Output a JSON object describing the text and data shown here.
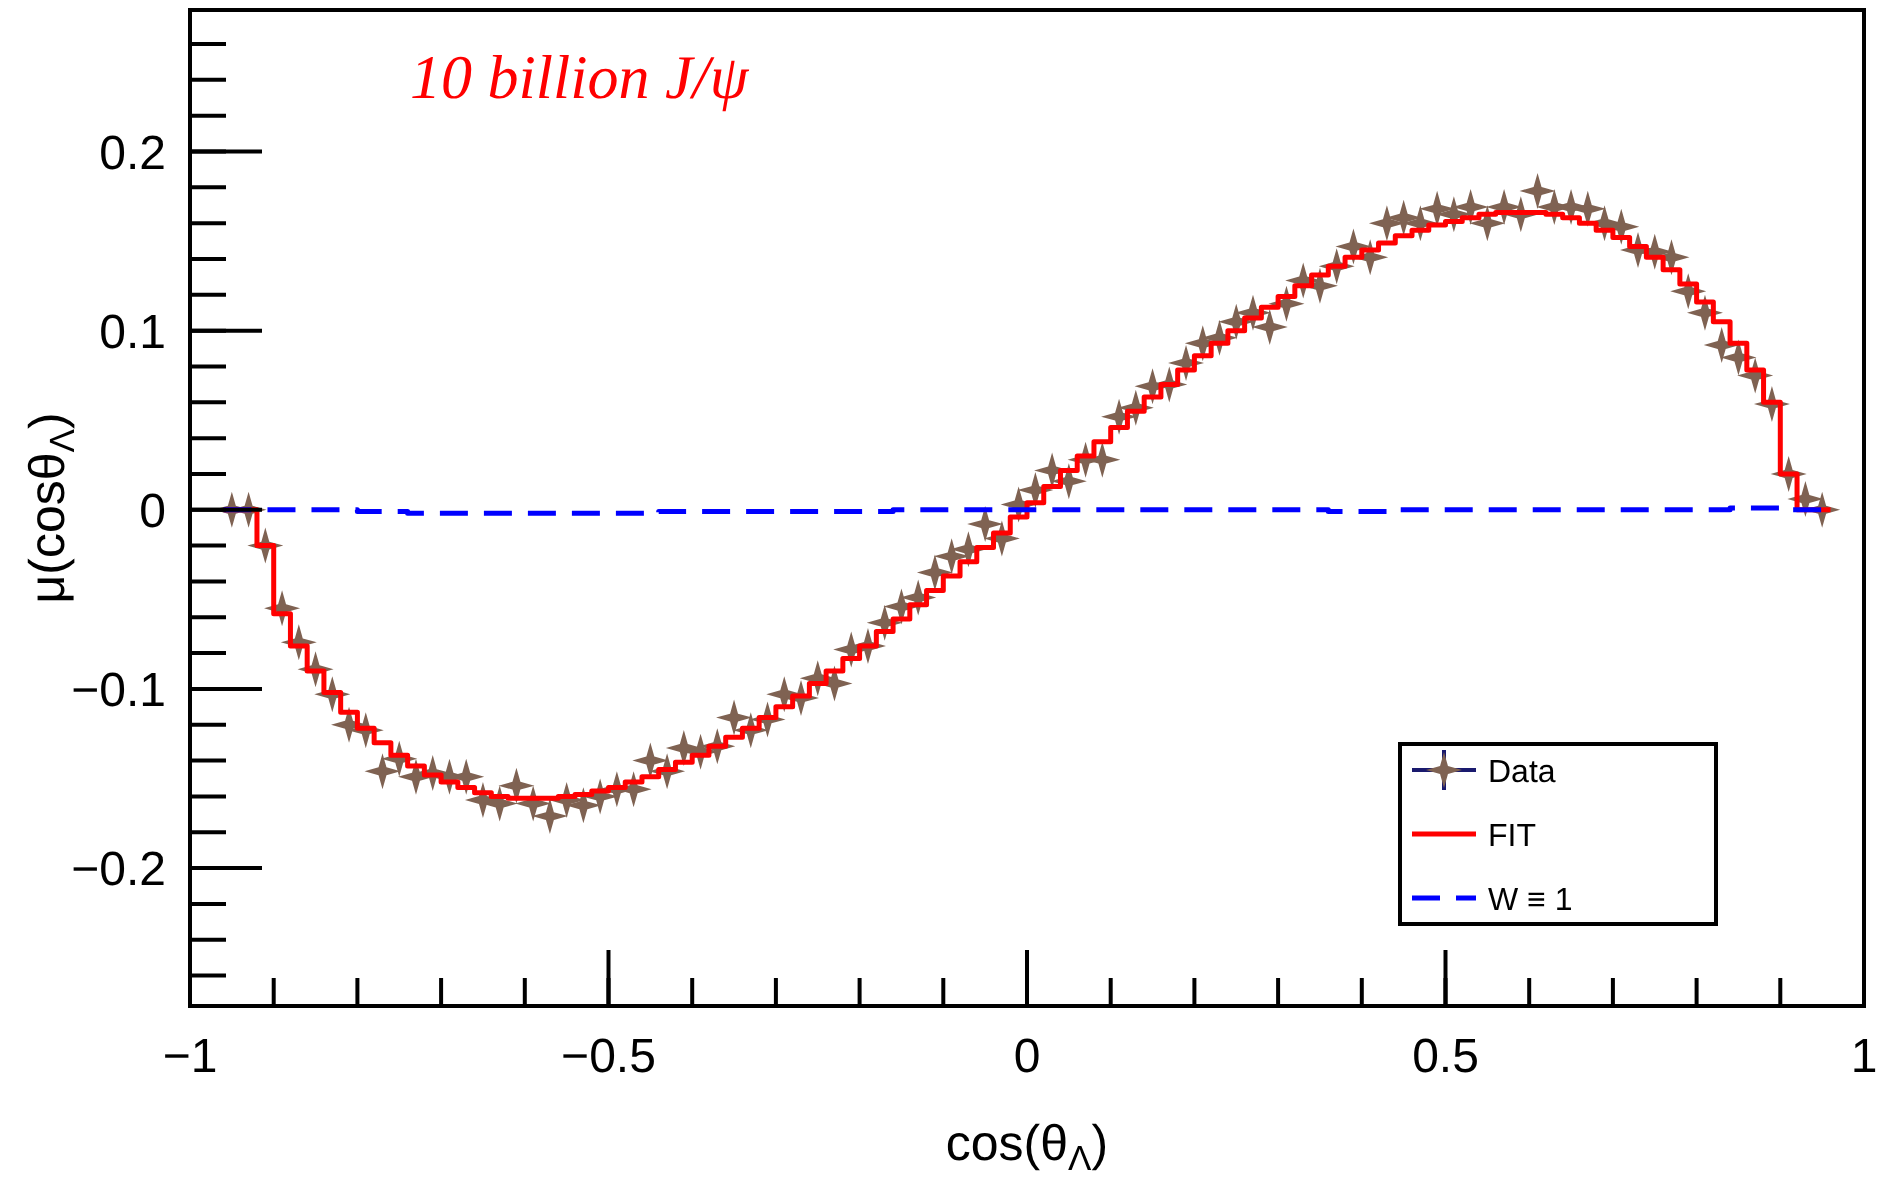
{
  "chart_data": {
    "type": "step",
    "title": "10 billion J/ψ",
    "xlabel": "cos(θ$_{Λ}$)",
    "ylabel": "μ(cosθ$_{Λ}$)",
    "x": [
      -0.95,
      -0.93,
      -0.91,
      -0.89,
      -0.87,
      -0.85,
      -0.83,
      -0.81,
      -0.79,
      -0.77,
      -0.75,
      -0.73,
      -0.71,
      -0.69,
      -0.67,
      -0.65,
      -0.63,
      -0.61,
      -0.59,
      -0.57,
      -0.55,
      -0.53,
      -0.51,
      -0.49,
      -0.47,
      -0.45,
      -0.43,
      -0.41,
      -0.39,
      -0.37,
      -0.35,
      -0.33,
      -0.31,
      -0.29,
      -0.27,
      -0.25,
      -0.23,
      -0.21,
      -0.19,
      -0.17,
      -0.15,
      -0.13,
      -0.11,
      -0.09,
      -0.07,
      -0.05,
      -0.03,
      -0.01,
      0.01,
      0.03,
      0.05,
      0.07,
      0.09,
      0.11,
      0.13,
      0.15,
      0.17,
      0.19,
      0.21,
      0.23,
      0.25,
      0.27,
      0.29,
      0.31,
      0.33,
      0.35,
      0.37,
      0.39,
      0.41,
      0.43,
      0.45,
      0.47,
      0.49,
      0.51,
      0.53,
      0.55,
      0.57,
      0.59,
      0.61,
      0.63,
      0.65,
      0.67,
      0.69,
      0.71,
      0.73,
      0.75,
      0.77,
      0.79,
      0.81,
      0.83,
      0.85,
      0.87,
      0.89,
      0.91,
      0.93,
      0.95
    ],
    "series": [
      {
        "name": "Data",
        "type": "scatter",
        "color": "#7f6252",
        "marker": "star",
        "values": [
          0,
          0,
          -0.02,
          -0.055,
          -0.074,
          -0.089,
          -0.103,
          -0.12,
          -0.123,
          -0.146,
          -0.139,
          -0.149,
          -0.147,
          -0.149,
          -0.149,
          -0.162,
          -0.164,
          -0.154,
          -0.164,
          -0.171,
          -0.162,
          -0.165,
          -0.16,
          -0.156,
          -0.156,
          -0.14,
          -0.146,
          -0.133,
          -0.135,
          -0.132,
          -0.116,
          -0.123,
          -0.117,
          -0.103,
          -0.105,
          -0.094,
          -0.097,
          -0.078,
          -0.076,
          -0.063,
          -0.054,
          -0.049,
          -0.035,
          -0.026,
          -0.022,
          -0.008,
          -0.016,
          0.003,
          0.011,
          0.022,
          0.016,
          0.028,
          0.028,
          0.052,
          0.057,
          0.069,
          0.07,
          0.082,
          0.093,
          0.096,
          0.105,
          0.11,
          0.102,
          0.115,
          0.128,
          0.125,
          0.136,
          0.147,
          0.141,
          0.16,
          0.163,
          0.16,
          0.168,
          0.165,
          0.169,
          0.16,
          0.169,
          0.165,
          0.178,
          0.169,
          0.169,
          0.168,
          0.16,
          0.158,
          0.145,
          0.144,
          0.141,
          0.122,
          0.11,
          0.092,
          0.085,
          0.075,
          0.059,
          0.02,
          0.006,
          0
        ]
      },
      {
        "name": "FIT",
        "color": "#ff0000",
        "line_style": "solid",
        "values": [
          0,
          0,
          -0.02,
          -0.058,
          -0.076,
          -0.09,
          -0.102,
          -0.113,
          -0.122,
          -0.13,
          -0.137,
          -0.143,
          -0.148,
          -0.152,
          -0.155,
          -0.158,
          -0.16,
          -0.161,
          -0.161,
          -0.161,
          -0.16,
          -0.159,
          -0.157,
          -0.155,
          -0.152,
          -0.149,
          -0.145,
          -0.141,
          -0.137,
          -0.132,
          -0.127,
          -0.122,
          -0.116,
          -0.11,
          -0.104,
          -0.097,
          -0.09,
          -0.083,
          -0.076,
          -0.068,
          -0.061,
          -0.053,
          -0.045,
          -0.037,
          -0.029,
          -0.021,
          -0.013,
          -0.004,
          0.004,
          0.013,
          0.022,
          0.03,
          0.038,
          0.046,
          0.055,
          0.063,
          0.07,
          0.078,
          0.086,
          0.093,
          0.1,
          0.107,
          0.113,
          0.119,
          0.125,
          0.131,
          0.136,
          0.141,
          0.145,
          0.149,
          0.153,
          0.156,
          0.159,
          0.161,
          0.163,
          0.165,
          0.166,
          0.166,
          0.166,
          0.165,
          0.163,
          0.16,
          0.156,
          0.152,
          0.147,
          0.141,
          0.134,
          0.126,
          0.116,
          0.105,
          0.093,
          0.078,
          0.06,
          0.02,
          0,
          0
        ]
      },
      {
        "name": "W ≡ 1",
        "color": "#0000ff",
        "line_style": "dashed",
        "values": [
          0,
          0,
          0,
          0,
          0,
          0,
          0,
          0,
          -0.001,
          -0.001,
          -0.001,
          -0.002,
          -0.002,
          -0.002,
          -0.002,
          -0.002,
          -0.002,
          -0.002,
          -0.002,
          -0.002,
          -0.002,
          -0.002,
          -0.002,
          -0.002,
          -0.002,
          -0.002,
          -0.001,
          -0.001,
          -0.001,
          -0.001,
          -0.001,
          -0.001,
          -0.001,
          -0.001,
          -0.001,
          -0.001,
          -0.001,
          -0.001,
          -0.001,
          -0.001,
          0,
          0,
          0,
          0,
          0,
          0,
          0,
          0,
          0,
          0,
          0,
          0,
          0,
          0,
          0,
          0,
          0,
          0,
          0,
          0,
          0,
          0,
          0,
          0,
          0,
          0,
          -0.001,
          -0.001,
          -0.001,
          -0.001,
          0,
          0,
          0,
          0,
          0,
          0,
          0,
          0,
          0,
          0,
          0,
          0,
          0,
          0,
          0,
          0,
          0,
          0,
          0,
          0,
          0.001,
          0.001,
          0.001,
          0,
          0,
          0
        ]
      }
    ],
    "xlim": [
      -1,
      1
    ],
    "xticks": [
      {
        "value": -1,
        "label": "−1"
      },
      {
        "value": -0.5,
        "label": "−0.5"
      },
      0,
      0.5,
      1
    ],
    "ylim": [
      -0.277,
      0.279
    ],
    "yticks": [
      {
        "value": -0.2,
        "label": "−0.2"
      },
      {
        "value": -0.1,
        "label": "−0.1"
      },
      0,
      0.1,
      0.2
    ],
    "legend": "bottom right",
    "grid": false
  }
}
